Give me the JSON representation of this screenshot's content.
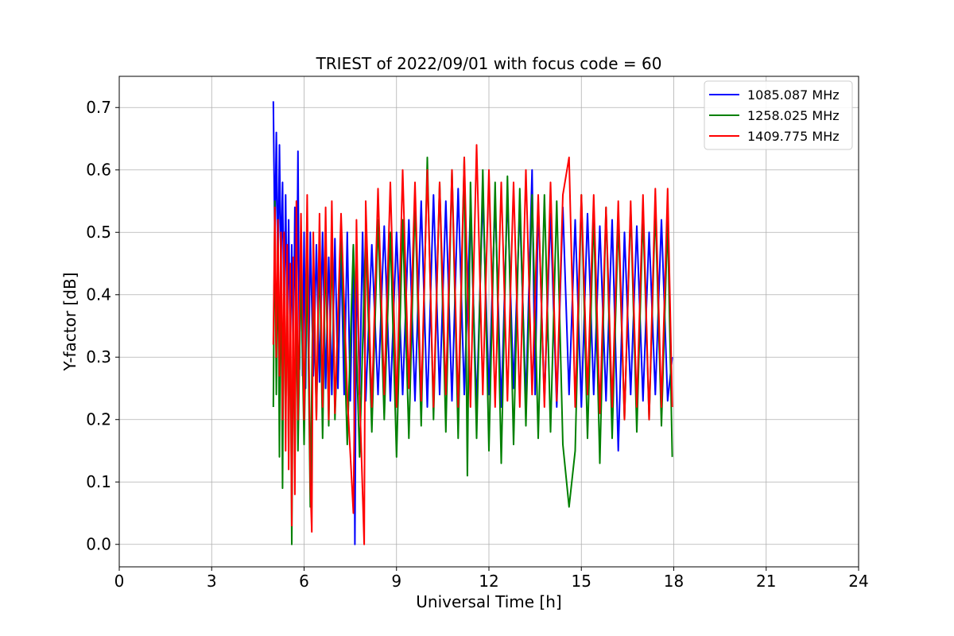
{
  "chart_data": {
    "type": "line",
    "title": "TRIEST of 2022/09/01 with focus code = 60",
    "xlabel": "Universal Time [h]",
    "ylabel": "Y-factor [dB]",
    "xlim": [
      0,
      24
    ],
    "ylim": [
      -0.036,
      0.75
    ],
    "xticks": [
      0,
      3,
      6,
      9,
      12,
      15,
      18,
      21,
      24
    ],
    "yticks": [
      0.0,
      0.1,
      0.2,
      0.3,
      0.4,
      0.5,
      0.6,
      0.7
    ],
    "ytick_labels": [
      "0.0",
      "0.1",
      "0.2",
      "0.3",
      "0.4",
      "0.5",
      "0.6",
      "0.7"
    ],
    "grid": true,
    "legend_position": "top-right",
    "series": [
      {
        "name": "1085.087 MHz",
        "color": "#0000ff",
        "x": [
          5.0,
          5.05,
          5.1,
          5.15,
          5.2,
          5.25,
          5.3,
          5.35,
          5.4,
          5.45,
          5.5,
          5.55,
          5.6,
          5.65,
          5.7,
          5.75,
          5.8,
          5.85,
          5.9,
          5.95,
          6.0,
          6.05,
          6.1,
          6.15,
          6.2,
          6.3,
          6.4,
          6.5,
          6.6,
          6.7,
          6.8,
          6.9,
          7.0,
          7.1,
          7.2,
          7.3,
          7.4,
          7.5,
          7.6,
          7.65,
          7.7,
          7.8,
          7.9,
          8.0,
          8.2,
          8.4,
          8.6,
          8.8,
          9.0,
          9.2,
          9.4,
          9.6,
          9.8,
          10.0,
          10.2,
          10.4,
          10.6,
          10.8,
          11.0,
          11.2,
          11.4,
          11.6,
          11.8,
          12.0,
          12.2,
          12.4,
          12.6,
          12.8,
          13.0,
          13.2,
          13.4,
          13.5,
          13.6,
          13.8,
          14.0,
          14.2,
          14.4,
          14.6,
          14.8,
          15.0,
          15.2,
          15.4,
          15.6,
          15.8,
          16.0,
          16.2,
          16.4,
          16.6,
          16.8,
          17.0,
          17.2,
          17.4,
          17.6,
          17.8,
          17.95
        ],
        "y": [
          0.71,
          0.48,
          0.66,
          0.43,
          0.64,
          0.44,
          0.58,
          0.36,
          0.56,
          0.34,
          0.52,
          0.3,
          0.48,
          0.29,
          0.54,
          0.3,
          0.63,
          0.28,
          0.5,
          0.27,
          0.5,
          0.25,
          0.48,
          0.28,
          0.5,
          0.27,
          0.48,
          0.26,
          0.5,
          0.25,
          0.46,
          0.24,
          0.49,
          0.25,
          0.47,
          0.24,
          0.5,
          0.23,
          0.48,
          0.0,
          0.46,
          0.24,
          0.5,
          0.23,
          0.48,
          0.24,
          0.51,
          0.23,
          0.5,
          0.24,
          0.52,
          0.23,
          0.55,
          0.22,
          0.56,
          0.24,
          0.55,
          0.23,
          0.57,
          0.24,
          0.54,
          0.22,
          0.56,
          0.24,
          0.55,
          0.22,
          0.56,
          0.25,
          0.54,
          0.23,
          0.6,
          0.24,
          0.55,
          0.23,
          0.53,
          0.22,
          0.54,
          0.24,
          0.52,
          0.22,
          0.53,
          0.24,
          0.51,
          0.23,
          0.52,
          0.15,
          0.5,
          0.24,
          0.51,
          0.23,
          0.5,
          0.24,
          0.52,
          0.23,
          0.3
        ]
      },
      {
        "name": "1258.025 MHz",
        "color": "#008000",
        "x": [
          5.0,
          5.05,
          5.1,
          5.15,
          5.2,
          5.25,
          5.3,
          5.35,
          5.4,
          5.45,
          5.5,
          5.55,
          5.6,
          5.65,
          5.7,
          5.75,
          5.8,
          5.9,
          6.0,
          6.1,
          6.2,
          6.3,
          6.4,
          6.5,
          6.6,
          6.7,
          6.8,
          6.9,
          7.0,
          7.2,
          7.4,
          7.6,
          7.8,
          8.0,
          8.2,
          8.4,
          8.6,
          8.8,
          9.0,
          9.2,
          9.4,
          9.6,
          9.8,
          10.0,
          10.2,
          10.4,
          10.6,
          10.8,
          11.0,
          11.2,
          11.3,
          11.4,
          11.6,
          11.8,
          12.0,
          12.2,
          12.4,
          12.6,
          12.8,
          13.0,
          13.2,
          13.4,
          13.6,
          13.8,
          14.0,
          14.2,
          14.4,
          14.6,
          14.8,
          15.0,
          15.2,
          15.4,
          15.6,
          15.8,
          16.0,
          16.2,
          16.4,
          16.6,
          16.8,
          17.0,
          17.2,
          17.4,
          17.6,
          17.8,
          17.95
        ],
        "y": [
          0.22,
          0.55,
          0.24,
          0.5,
          0.14,
          0.49,
          0.09,
          0.46,
          0.2,
          0.42,
          0.15,
          0.4,
          0.0,
          0.38,
          0.12,
          0.42,
          0.15,
          0.44,
          0.16,
          0.46,
          0.06,
          0.45,
          0.2,
          0.47,
          0.17,
          0.48,
          0.19,
          0.49,
          0.2,
          0.5,
          0.16,
          0.48,
          0.14,
          0.5,
          0.18,
          0.52,
          0.2,
          0.5,
          0.14,
          0.52,
          0.17,
          0.55,
          0.19,
          0.62,
          0.2,
          0.58,
          0.18,
          0.6,
          0.17,
          0.62,
          0.11,
          0.58,
          0.17,
          0.6,
          0.15,
          0.58,
          0.13,
          0.59,
          0.16,
          0.57,
          0.19,
          0.56,
          0.17,
          0.56,
          0.18,
          0.55,
          0.16,
          0.06,
          0.15,
          0.56,
          0.17,
          0.53,
          0.13,
          0.54,
          0.17,
          0.52,
          0.2,
          0.54,
          0.18,
          0.53,
          0.2,
          0.54,
          0.19,
          0.52,
          0.14
        ]
      },
      {
        "name": "1409.775 MHz",
        "color": "#ff0000",
        "x": [
          5.0,
          5.05,
          5.1,
          5.15,
          5.2,
          5.25,
          5.3,
          5.35,
          5.4,
          5.45,
          5.5,
          5.55,
          5.6,
          5.65,
          5.7,
          5.75,
          5.8,
          5.9,
          6.0,
          6.1,
          6.2,
          6.25,
          6.3,
          6.4,
          6.5,
          6.6,
          6.7,
          6.8,
          6.9,
          7.0,
          7.2,
          7.4,
          7.6,
          7.7,
          7.8,
          7.95,
          8.0,
          8.2,
          8.4,
          8.6,
          8.8,
          9.0,
          9.2,
          9.4,
          9.6,
          9.8,
          10.0,
          10.2,
          10.4,
          10.6,
          10.8,
          11.0,
          11.2,
          11.4,
          11.6,
          11.8,
          12.0,
          12.2,
          12.4,
          12.6,
          12.8,
          13.0,
          13.2,
          13.4,
          13.6,
          13.8,
          14.0,
          14.2,
          14.4,
          14.6,
          14.8,
          15.0,
          15.2,
          15.4,
          15.6,
          15.8,
          16.0,
          16.2,
          16.4,
          16.6,
          16.8,
          17.0,
          17.2,
          17.4,
          17.6,
          17.8,
          17.95
        ],
        "y": [
          0.32,
          0.54,
          0.3,
          0.52,
          0.27,
          0.5,
          0.2,
          0.5,
          0.15,
          0.48,
          0.12,
          0.45,
          0.03,
          0.46,
          0.08,
          0.55,
          0.2,
          0.53,
          0.2,
          0.56,
          0.1,
          0.02,
          0.5,
          0.2,
          0.53,
          0.22,
          0.54,
          0.2,
          0.55,
          0.21,
          0.53,
          0.24,
          0.05,
          0.52,
          0.24,
          0.0,
          0.55,
          0.22,
          0.57,
          0.24,
          0.58,
          0.22,
          0.6,
          0.25,
          0.58,
          0.23,
          0.6,
          0.22,
          0.58,
          0.24,
          0.6,
          0.22,
          0.62,
          0.22,
          0.64,
          0.24,
          0.6,
          0.22,
          0.58,
          0.23,
          0.58,
          0.22,
          0.6,
          0.24,
          0.56,
          0.22,
          0.58,
          0.23,
          0.56,
          0.62,
          0.22,
          0.56,
          0.24,
          0.56,
          0.21,
          0.54,
          0.22,
          0.55,
          0.2,
          0.55,
          0.22,
          0.56,
          0.2,
          0.57,
          0.22,
          0.57,
          0.22
        ]
      }
    ]
  }
}
